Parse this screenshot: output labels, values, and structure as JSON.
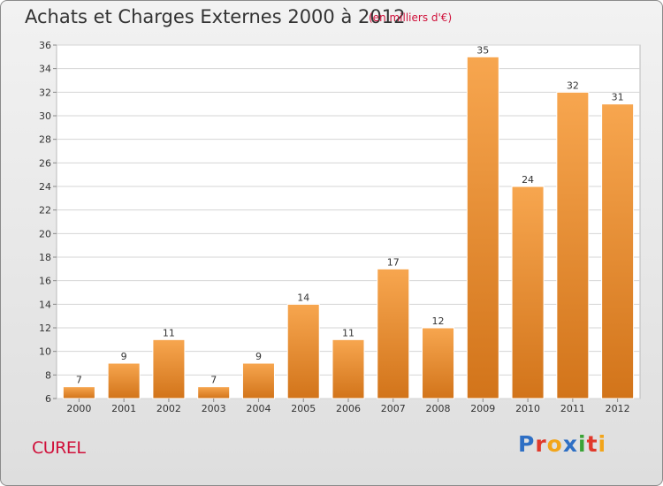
{
  "chart_data": {
    "type": "bar",
    "title": "Achats et Charges Externes 2000 à 2012",
    "subtitle": "(en milliers d'€)",
    "categories": [
      "2000",
      "2001",
      "2002",
      "2003",
      "2004",
      "2005",
      "2006",
      "2007",
      "2008",
      "2009",
      "2010",
      "2011",
      "2012"
    ],
    "values": [
      7,
      9,
      11,
      7,
      9,
      14,
      11,
      17,
      12,
      35,
      24,
      32,
      31
    ],
    "ylim": [
      6,
      36
    ],
    "yticks": [
      6,
      8,
      10,
      12,
      14,
      16,
      18,
      20,
      22,
      24,
      26,
      28,
      30,
      32,
      34,
      36
    ],
    "grid": true,
    "bar_color_top": "#f7a64f",
    "bar_color_bottom": "#d2741a"
  },
  "commune": "CUREL",
  "logo": {
    "text": "Proxiti",
    "letters": [
      {
        "char": "P",
        "color": "#2e6fc4"
      },
      {
        "char": "r",
        "color": "#e0392b"
      },
      {
        "char": "o",
        "color": "#f2a51a"
      },
      {
        "char": "x",
        "color": "#2e6fc4"
      },
      {
        "char": "i",
        "color": "#3aa335"
      },
      {
        "char": "t",
        "color": "#e0392b"
      },
      {
        "char": "i",
        "color": "#f2a51a"
      }
    ]
  }
}
